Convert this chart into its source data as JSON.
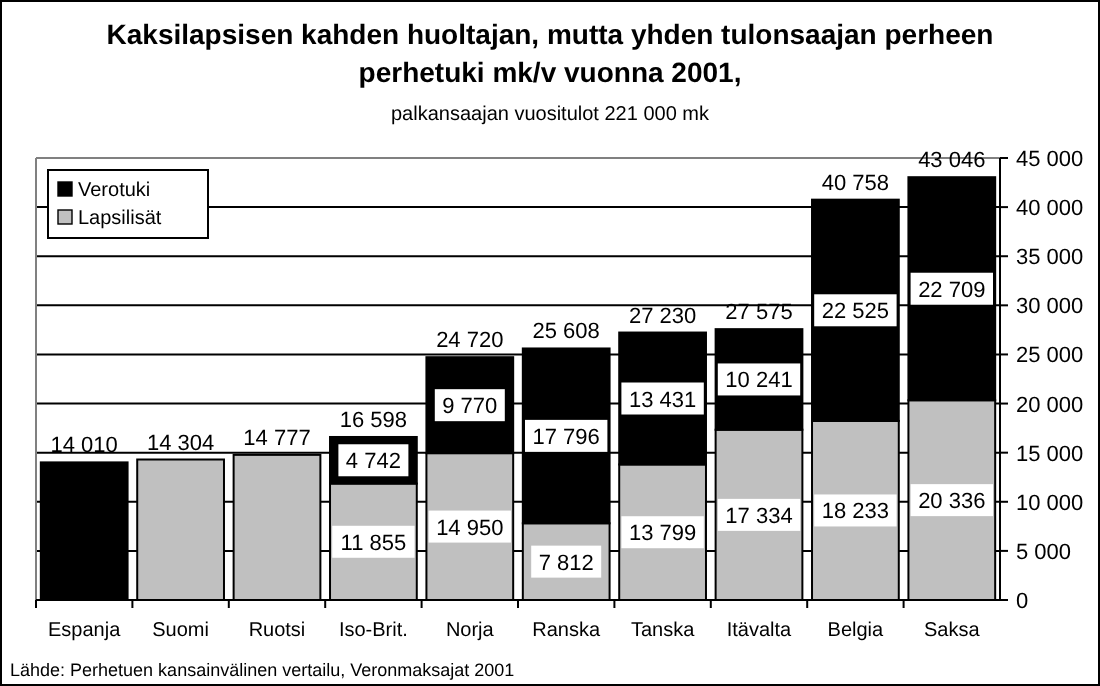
{
  "chart_data": {
    "type": "bar",
    "stacked": true,
    "title": "Kaksilapsisen kahden huoltajan, mutta yhden tulonsaajan perheen perhetuki mk/v vuonna 2001,",
    "subtitle": "palkansaajan vuositulot 221 000 mk",
    "annotations": [
      "Lähde: Perhetuen kansainvälinen vertailu, Veronmaksajat 2001"
    ],
    "categories": [
      "Espanja",
      "Suomi",
      "Ruotsi",
      "Iso-Brit.",
      "Norja",
      "Ranska",
      "Tanska",
      "Itävalta",
      "Belgia",
      "Saksa"
    ],
    "series": [
      {
        "name": "Lapsilisät",
        "color": "#c0c0c0",
        "values": [
          null,
          14304,
          14777,
          11855,
          14950,
          7812,
          13799,
          17334,
          18233,
          20336
        ],
        "value_labels": [
          null,
          null,
          null,
          "11 855",
          "14 950",
          "7 812",
          "13 799",
          "17 334",
          "18 233",
          "20 336"
        ]
      },
      {
        "name": "Verotuki",
        "color": "#000000",
        "values": [
          14010,
          null,
          null,
          4742,
          9770,
          17796,
          13431,
          10241,
          22525,
          22709
        ],
        "value_labels": [
          null,
          null,
          null,
          "4 742",
          "9 770",
          "17 796",
          "13 431",
          "10 241",
          "22 525",
          "22 709"
        ]
      }
    ],
    "totals": [
      "14 010",
      "14 304",
      "14 777",
      "16 598",
      "24 720",
      "25 608",
      "27 230",
      "27 575",
      "40 758",
      "43 046"
    ],
    "ylim": [
      0,
      45000
    ],
    "yticks": [
      0,
      {
        "value": 5000,
        "label": "5 000"
      },
      {
        "value": 10000,
        "label": "10 000"
      },
      {
        "value": 15000,
        "label": "15 000"
      },
      {
        "value": 20000,
        "label": "20 000"
      },
      {
        "value": 25000,
        "label": "25 000"
      },
      {
        "value": 30000,
        "label": "30 000"
      },
      {
        "value": 35000,
        "label": "35 000"
      },
      {
        "value": 40000,
        "label": "40 000"
      },
      {
        "value": 45000,
        "label": "45 000"
      }
    ],
    "grid": "y",
    "legend": "top left"
  }
}
